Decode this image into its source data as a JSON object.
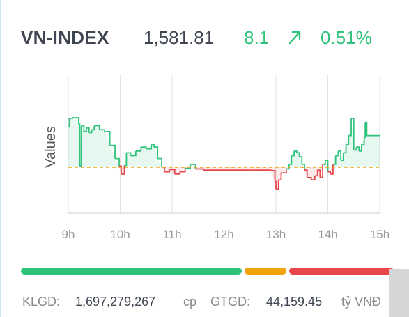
{
  "index": {
    "name": "VN-INDEX",
    "value": "1,581.81",
    "change": "8.1",
    "percent": "0.51%",
    "direction": "up",
    "up_color": "#2fc27b",
    "down_color": "#e8464a",
    "ref_color": "#f2a20a"
  },
  "chart": {
    "y_axis_label": "Values",
    "x_ticks": [
      "9h",
      "10h",
      "11h",
      "12h",
      "13h",
      "14h",
      "15h"
    ]
  },
  "chart_data": {
    "type": "line",
    "y_axis_label": "Values",
    "x_ticks": [
      "9h",
      "10h",
      "11h",
      "12h",
      "13h",
      "14h",
      "15h"
    ],
    "reference_level": 0,
    "ylim": [
      -8,
      16
    ],
    "series": [
      {
        "values": [
          [
            9.0,
            7.0
          ],
          [
            9.02,
            8.5
          ],
          [
            9.08,
            8.6
          ],
          [
            9.15,
            8.6
          ],
          [
            9.2,
            7.5
          ],
          [
            9.22,
            0.2
          ],
          [
            9.25,
            7.2
          ],
          [
            9.3,
            6.2
          ],
          [
            9.35,
            6.8
          ],
          [
            9.4,
            6.0
          ],
          [
            9.45,
            6.5
          ],
          [
            9.5,
            7.2
          ],
          [
            9.6,
            6.5
          ],
          [
            9.7,
            6.2
          ],
          [
            9.8,
            3.8
          ],
          [
            9.9,
            1.5
          ],
          [
            9.98,
            0.2
          ],
          [
            10.02,
            -1.2
          ],
          [
            10.08,
            0.3
          ],
          [
            10.12,
            2.5
          ],
          [
            10.2,
            2.0
          ],
          [
            10.3,
            2.8
          ],
          [
            10.4,
            3.5
          ],
          [
            10.5,
            3.2
          ],
          [
            10.6,
            4.0
          ],
          [
            10.65,
            3.5
          ],
          [
            10.72,
            1.5
          ],
          [
            10.8,
            0.0
          ],
          [
            10.85,
            -0.8
          ],
          [
            10.95,
            -0.4
          ],
          [
            11.05,
            -1.2
          ],
          [
            11.15,
            -0.8
          ],
          [
            11.25,
            -0.2
          ],
          [
            11.35,
            0.5
          ],
          [
            11.45,
            -0.3
          ],
          [
            11.6,
            -0.5
          ],
          [
            12.2,
            -0.5
          ],
          [
            12.6,
            -0.5
          ],
          [
            12.9,
            -0.6
          ],
          [
            12.98,
            -2.5
          ],
          [
            13.0,
            -3.8
          ],
          [
            13.05,
            -2.2
          ],
          [
            13.1,
            -1.0
          ],
          [
            13.2,
            -0.3
          ],
          [
            13.25,
            0.5
          ],
          [
            13.3,
            2.0
          ],
          [
            13.35,
            2.8
          ],
          [
            13.4,
            2.5
          ],
          [
            13.45,
            1.8
          ],
          [
            13.5,
            0.5
          ],
          [
            13.55,
            -0.5
          ],
          [
            13.6,
            -1.8
          ],
          [
            13.68,
            -2.2
          ],
          [
            13.75,
            -1.5
          ],
          [
            13.8,
            -0.5
          ],
          [
            13.85,
            -1.8
          ],
          [
            13.9,
            0.5
          ],
          [
            13.95,
            1.2
          ],
          [
            14.0,
            -0.8
          ],
          [
            14.05,
            -1.2
          ],
          [
            14.1,
            0.5
          ],
          [
            14.15,
            2.0
          ],
          [
            14.2,
            2.8
          ],
          [
            14.25,
            1.2
          ],
          [
            14.3,
            2.5
          ],
          [
            14.35,
            4.0
          ],
          [
            14.4,
            5.5
          ],
          [
            14.45,
            8.5
          ],
          [
            14.5,
            3.0
          ],
          [
            14.55,
            3.5
          ],
          [
            14.6,
            2.8
          ],
          [
            14.65,
            4.0
          ],
          [
            14.7,
            5.2
          ],
          [
            14.72,
            7.8
          ],
          [
            14.75,
            5.5
          ],
          [
            14.9,
            5.5
          ],
          [
            15.0,
            5.5
          ]
        ]
      }
    ]
  },
  "progress_bar": {
    "up_fraction": 0.6,
    "ref_fraction": 0.12,
    "down_fraction": 0.28,
    "up_color": "#2fc27b",
    "ref_color": "#f2a20a",
    "down_color": "#e8464a"
  },
  "footer": {
    "klgd_label": "KLGD:",
    "klgd_value": "1,697,279,267",
    "klgd_unit": "cp",
    "gtgd_label": "GTGD:",
    "gtgd_value": "44,159.45",
    "gtgd_unit": "tỷ VNĐ"
  }
}
